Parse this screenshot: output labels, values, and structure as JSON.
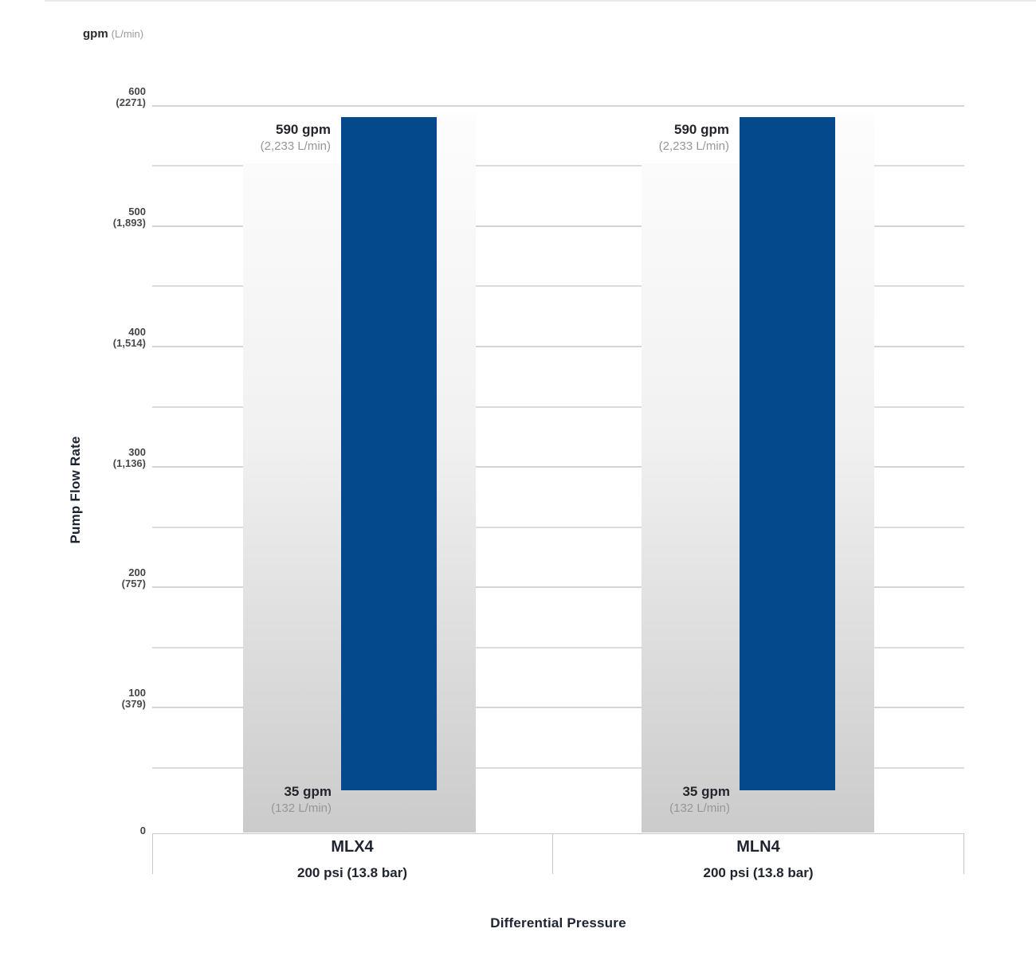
{
  "unit_header": {
    "primary": "gpm",
    "secondary": "(L/min)"
  },
  "chart_data": {
    "type": "bar",
    "title": "",
    "ylabel": "Pump Flow Rate",
    "xlabel": "Differential Pressure",
    "unit": "gpm (L/min)",
    "ylim": [
      0,
      600
    ],
    "grid": true,
    "y_ticks": [
      {
        "gpm": "600",
        "lpm": "(2271)"
      },
      {
        "gpm": "500",
        "lpm": "(1,893)"
      },
      {
        "gpm": "400",
        "lpm": "(1,514)"
      },
      {
        "gpm": "300",
        "lpm": "(1,136)"
      },
      {
        "gpm": "200",
        "lpm": "(757)"
      },
      {
        "gpm": "100",
        "lpm": "(379)"
      },
      {
        "gpm": "0",
        "lpm": ""
      }
    ],
    "y_minor_ticks": [
      550,
      450,
      350,
      250,
      150,
      50
    ],
    "categories": [
      "MLX4",
      "MLN4"
    ],
    "series": [
      {
        "category": "MLX4",
        "pressure": "200 psi (13.8 bar)",
        "min_gpm": 35,
        "max_gpm": 590,
        "labels": {
          "max": "590 gpm",
          "max_metric": "(2,233 L/min)",
          "min": "35 gpm",
          "min_metric": "(132 L/min)"
        }
      },
      {
        "category": "MLN4",
        "pressure": "200 psi (13.8 bar)",
        "min_gpm": 35,
        "max_gpm": 590,
        "labels": {
          "max": "590 gpm",
          "max_metric": "(2,233 L/min)",
          "min": "35 gpm",
          "min_metric": "(132 L/min)"
        }
      }
    ],
    "colors": {
      "bar": "#05498d",
      "column_top": "#fdfdfd",
      "column_bottom": "#cbcbcb",
      "gridline": "#d4d4d4",
      "dark_text": "#25252d",
      "muted_text": "#97979b"
    }
  }
}
